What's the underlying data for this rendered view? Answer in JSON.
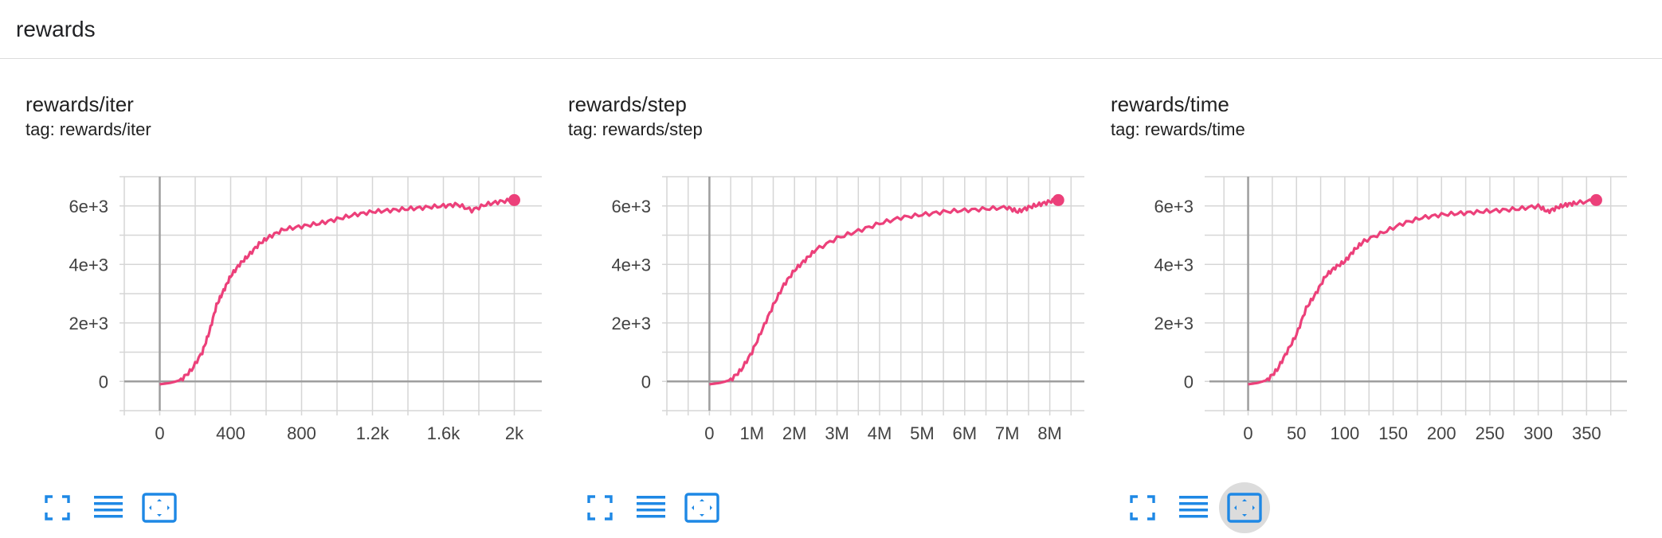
{
  "header": {
    "title": "rewards"
  },
  "colors": {
    "series": "#ec407a",
    "icon": "#1e88e5",
    "grid": "#d6d6d6",
    "axis": "#9e9e9e"
  },
  "icons": [
    "fullscreen-icon",
    "toggle-lines-icon",
    "fit-domain-icon"
  ],
  "chart_data": [
    {
      "type": "line",
      "title": "rewards/iter",
      "tag": "tag: rewards/iter",
      "xlim": [
        -200,
        2200
      ],
      "ylim": [
        -1000,
        7000
      ],
      "xticks": [
        0,
        400,
        800,
        1200,
        1600,
        2000
      ],
      "xtick_labels": [
        "0",
        "400",
        "800",
        "1.2k",
        "1.6k",
        "2k"
      ],
      "yticks": [
        0,
        2000,
        4000,
        6000
      ],
      "ytick_labels": [
        "0",
        "2e+3",
        "4e+3",
        "6e+3"
      ],
      "grid": true,
      "active_fit": false,
      "series": [
        {
          "x": [
            0,
            60,
            120,
            180,
            240,
            280,
            320,
            360,
            400,
            450,
            500,
            560,
            620,
            700,
            800,
            900,
            1000,
            1100,
            1200,
            1300,
            1400,
            1500,
            1600,
            1680,
            1760,
            1840,
            1920,
            2000
          ],
          "y": [
            -100,
            -50,
            50,
            400,
            1000,
            1700,
            2600,
            3100,
            3600,
            4000,
            4300,
            4700,
            4950,
            5200,
            5300,
            5400,
            5550,
            5700,
            5800,
            5850,
            5900,
            5950,
            6000,
            6050,
            5850,
            6050,
            6150,
            6200
          ]
        }
      ]
    },
    {
      "type": "line",
      "title": "rewards/step",
      "tag": "tag: rewards/step",
      "xlim": [
        -1000000,
        9000000
      ],
      "ylim": [
        -1000,
        7000
      ],
      "xticks": [
        0,
        1000000,
        2000000,
        3000000,
        4000000,
        5000000,
        6000000,
        7000000,
        8000000
      ],
      "xtick_labels": [
        "0",
        "1M",
        "2M",
        "3M",
        "4M",
        "5M",
        "6M",
        "7M",
        "8M"
      ],
      "yticks": [
        0,
        2000,
        4000,
        6000
      ],
      "ytick_labels": [
        "0",
        "2e+3",
        "4e+3",
        "6e+3"
      ],
      "grid": true,
      "active_fit": false,
      "series": [
        {
          "x": [
            0,
            250000,
            500000,
            750000,
            1000000,
            1250000,
            1500000,
            1750000,
            2000000,
            2250000,
            2500000,
            3000000,
            3500000,
            4000000,
            4500000,
            5000000,
            5500000,
            6000000,
            6500000,
            7000000,
            7250000,
            7500000,
            7750000,
            8000000,
            8200000
          ],
          "y": [
            -100,
            -50,
            50,
            400,
            1000,
            1800,
            2600,
            3300,
            3800,
            4150,
            4500,
            4900,
            5150,
            5400,
            5600,
            5700,
            5800,
            5850,
            5900,
            5950,
            5800,
            5950,
            6050,
            6150,
            6200
          ]
        }
      ]
    },
    {
      "type": "line",
      "title": "rewards/time",
      "tag": "tag: rewards/time",
      "xlim": [
        -40,
        400
      ],
      "ylim": [
        -1000,
        7000
      ],
      "xticks": [
        0,
        50,
        100,
        150,
        200,
        250,
        300,
        350
      ],
      "xtick_labels": [
        "0",
        "50",
        "100",
        "150",
        "200",
        "250",
        "300",
        "350"
      ],
      "yticks": [
        0,
        2000,
        4000,
        6000
      ],
      "ytick_labels": [
        "0",
        "2e+3",
        "4e+3",
        "6e+3"
      ],
      "grid": true,
      "active_fit": true,
      "series": [
        {
          "x": [
            0,
            10,
            20,
            30,
            40,
            50,
            60,
            70,
            80,
            90,
            100,
            110,
            120,
            140,
            160,
            180,
            200,
            220,
            240,
            260,
            280,
            300,
            310,
            320,
            330,
            340,
            360
          ],
          "y": [
            -100,
            -50,
            50,
            400,
            1000,
            1600,
            2500,
            3000,
            3600,
            3900,
            4100,
            4500,
            4800,
            5100,
            5400,
            5600,
            5700,
            5750,
            5800,
            5850,
            5900,
            6000,
            5800,
            5950,
            6050,
            6100,
            6200
          ]
        }
      ]
    }
  ]
}
